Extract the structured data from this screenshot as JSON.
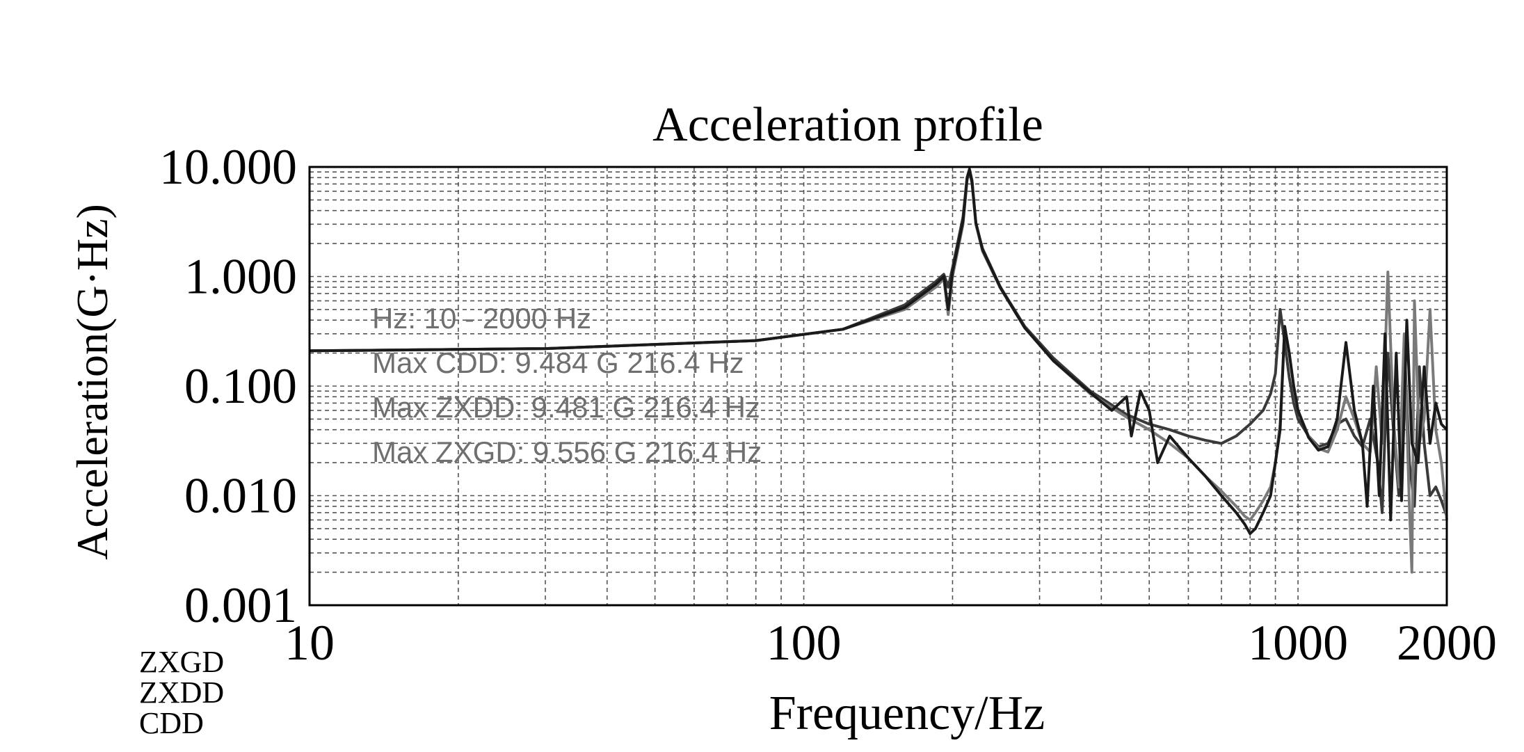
{
  "chart_data": {
    "type": "line",
    "title": "Acceleration profile",
    "xlabel": "Frequency/Hz",
    "ylabel": "Acceleration(G·Hz)",
    "x_scale": "log",
    "y_scale": "log",
    "xlim": [
      10,
      2000
    ],
    "ylim": [
      0.001,
      10
    ],
    "grid": true,
    "x_ticks": [
      {
        "value": 10,
        "label": "10"
      },
      {
        "value": 100,
        "label": "100"
      },
      {
        "value": 1000,
        "label": "1000"
      },
      {
        "value": 2000,
        "label": "2000"
      }
    ],
    "y_ticks": [
      {
        "value": 0.001,
        "label": "0.001"
      },
      {
        "value": 0.01,
        "label": "0.010"
      },
      {
        "value": 0.1,
        "label": "0.100"
      },
      {
        "value": 1,
        "label": "1.000"
      },
      {
        "value": 10,
        "label": "10.000"
      }
    ],
    "legend": [
      "ZXGD",
      "ZXDD",
      "CDD"
    ],
    "legend_position": "bottom-left",
    "annotations": [
      "Hz: 10 - 2000 Hz",
      "Max CDD: 9.484 G 216.4 Hz",
      "Max ZXDD: 9.481 G 216.4 Hz",
      "Max ZXGD: 9.556 G 216.4 Hz"
    ],
    "series": [
      {
        "name": "ZXGD",
        "color": "#3a3a3a",
        "x": [
          10,
          30,
          80,
          120,
          160,
          185,
          192,
          196,
          200,
          210,
          214,
          216.4,
          219,
          223,
          230,
          250,
          280,
          320,
          380,
          450,
          500,
          550,
          600,
          650,
          700,
          750,
          800,
          850,
          880,
          900,
          920,
          940,
          960,
          980,
          1000,
          1050,
          1100,
          1150,
          1200,
          1250,
          1300,
          1350,
          1400,
          1450,
          1480,
          1520,
          1560,
          1600,
          1640,
          1680,
          1720,
          1760,
          1800,
          1850,
          1900,
          1950,
          2000
        ],
        "y": [
          0.21,
          0.22,
          0.26,
          0.33,
          0.55,
          0.9,
          1.05,
          0.8,
          1.2,
          3.5,
          8.0,
          9.556,
          7.5,
          3.0,
          1.8,
          0.8,
          0.35,
          0.18,
          0.09,
          0.055,
          0.045,
          0.04,
          0.035,
          0.032,
          0.03,
          0.035,
          0.045,
          0.06,
          0.085,
          0.13,
          0.5,
          0.25,
          0.12,
          0.07,
          0.05,
          0.035,
          0.028,
          0.03,
          0.045,
          0.05,
          0.035,
          0.028,
          0.05,
          0.02,
          0.007,
          0.2,
          0.04,
          0.01,
          0.25,
          0.02,
          0.008,
          0.15,
          0.03,
          0.01,
          0.012,
          0.009,
          0.0065
        ]
      },
      {
        "name": "ZXDD",
        "color": "#7a7a7a",
        "x": [
          10,
          30,
          80,
          120,
          160,
          185,
          192,
          196,
          200,
          210,
          214,
          216.4,
          219,
          223,
          230,
          250,
          280,
          320,
          380,
          450,
          500,
          550,
          600,
          650,
          700,
          750,
          780,
          800,
          820,
          850,
          880,
          900,
          920,
          940,
          960,
          980,
          1000,
          1050,
          1100,
          1150,
          1200,
          1250,
          1300,
          1350,
          1400,
          1440,
          1480,
          1520,
          1560,
          1600,
          1640,
          1680,
          1700,
          1720,
          1760,
          1800,
          1850,
          1900,
          1950,
          2000
        ],
        "y": [
          0.21,
          0.22,
          0.26,
          0.33,
          0.5,
          0.8,
          0.95,
          0.45,
          1.0,
          3.0,
          7.5,
          9.481,
          7.0,
          3.0,
          1.7,
          0.78,
          0.34,
          0.17,
          0.085,
          0.052,
          0.04,
          0.03,
          0.022,
          0.015,
          0.011,
          0.008,
          0.0065,
          0.006,
          0.007,
          0.009,
          0.012,
          0.02,
          0.045,
          0.35,
          0.2,
          0.1,
          0.06,
          0.035,
          0.027,
          0.025,
          0.04,
          0.08,
          0.05,
          0.03,
          0.025,
          0.15,
          0.03,
          1.1,
          0.05,
          0.012,
          0.3,
          0.008,
          0.002,
          0.6,
          0.03,
          0.05,
          0.5,
          0.04,
          0.02,
          0.006
        ]
      },
      {
        "name": "CDD",
        "color": "#1a1a1a",
        "x": [
          10,
          30,
          80,
          120,
          160,
          185,
          192,
          196,
          200,
          210,
          214,
          216.4,
          219,
          223,
          230,
          250,
          280,
          320,
          380,
          420,
          450,
          460,
          480,
          500,
          520,
          550,
          600,
          650,
          700,
          750,
          780,
          800,
          820,
          850,
          880,
          900,
          920,
          940,
          960,
          980,
          1000,
          1050,
          1100,
          1150,
          1200,
          1250,
          1300,
          1350,
          1380,
          1420,
          1460,
          1500,
          1540,
          1580,
          1620,
          1660,
          1700,
          1750,
          1800,
          1850,
          1900,
          1950,
          2000
        ],
        "y": [
          0.21,
          0.22,
          0.26,
          0.33,
          0.52,
          0.85,
          1.0,
          0.5,
          1.1,
          3.2,
          7.8,
          9.484,
          7.2,
          3.1,
          1.75,
          0.79,
          0.34,
          0.17,
          0.087,
          0.06,
          0.08,
          0.035,
          0.09,
          0.06,
          0.02,
          0.035,
          0.022,
          0.015,
          0.01,
          0.007,
          0.0055,
          0.0045,
          0.005,
          0.007,
          0.01,
          0.02,
          0.04,
          0.35,
          0.2,
          0.1,
          0.06,
          0.034,
          0.026,
          0.028,
          0.05,
          0.25,
          0.06,
          0.03,
          0.008,
          0.1,
          0.01,
          0.3,
          0.006,
          0.2,
          0.009,
          0.4,
          0.03,
          0.02,
          0.15,
          0.03,
          0.07,
          0.045,
          0.04
        ]
      }
    ]
  }
}
